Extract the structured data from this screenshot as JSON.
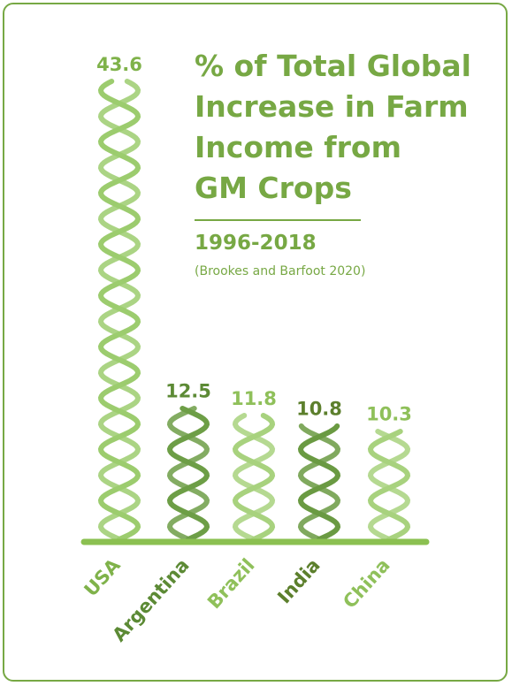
{
  "chart_data": {
    "type": "bar",
    "title_lines": [
      "% of Total Global",
      "Increase in Farm",
      "Income from",
      "GM Crops"
    ],
    "subtitle": "1996-2018",
    "source": "(Brookes and Barfoot 2020)",
    "categories": [
      "USA",
      "Argentina",
      "Brazil",
      "India",
      "China"
    ],
    "values": [
      43.6,
      12.5,
      11.8,
      10.8,
      10.3
    ],
    "value_labels": [
      "43.6",
      "12.5",
      "11.8",
      "10.8",
      "10.3"
    ],
    "xlabel": "",
    "ylabel": "",
    "grid": false,
    "legend": "none"
  },
  "colors": {
    "frame": "#77a844",
    "title": "#77a844",
    "baseline": "#8bc051",
    "strand_colors": [
      "#9ccc6e",
      "#6d9e46",
      "#a8d27e",
      "#6a9a42",
      "#a8d27e"
    ],
    "label_colors": [
      "#7fb24a",
      "#5c8a35",
      "#8fc05a",
      "#5c7f2c",
      "#8fc05a"
    ]
  }
}
